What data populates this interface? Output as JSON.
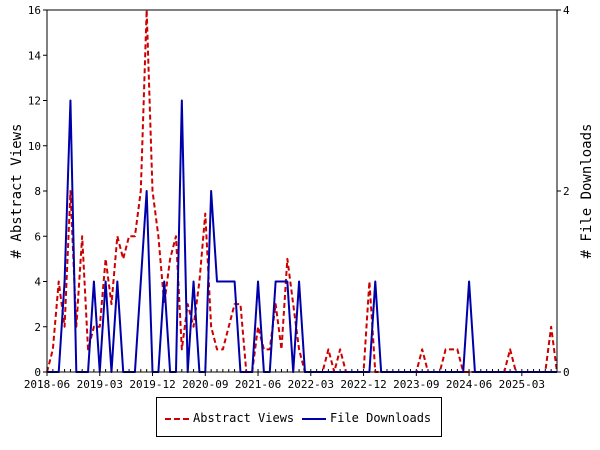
{
  "chart_data": {
    "type": "line",
    "ylabel": "# Abstract Views",
    "y2label": "# File Downloads",
    "ylim": [
      0,
      16
    ],
    "y2lim": [
      0,
      4
    ],
    "yticks": [
      0,
      2,
      4,
      6,
      8,
      10,
      12,
      14,
      16
    ],
    "y2ticks": [
      0,
      2,
      4
    ],
    "x_tick_labels": [
      "2018-06",
      "2019-03",
      "2019-12",
      "2020-09",
      "2021-06",
      "2022-03",
      "2022-12",
      "2023-09",
      "2024-06",
      "2025-03"
    ],
    "legend_position": "bottom",
    "series": [
      {
        "name": "Abstract Views",
        "axis": "left",
        "color": "#cc0000",
        "style": "dashed",
        "values": [
          0,
          1,
          4,
          2,
          8,
          2,
          6,
          1,
          2,
          2,
          5,
          3,
          6,
          5,
          6,
          6,
          8,
          16,
          8,
          6,
          3,
          5,
          6,
          1,
          3,
          2,
          4,
          7,
          2,
          1,
          1,
          2,
          3,
          3,
          0,
          0,
          2,
          1,
          1,
          3,
          1,
          5,
          3,
          1,
          0,
          0,
          0,
          0,
          1,
          0,
          1,
          0,
          0,
          0,
          0,
          4,
          0,
          0,
          0,
          0,
          0,
          0,
          0,
          0,
          1,
          0,
          0,
          0,
          1,
          1,
          1,
          0,
          0,
          0,
          0,
          0,
          0,
          0,
          0,
          1,
          0,
          0,
          0,
          0,
          0,
          0,
          2,
          0
        ]
      },
      {
        "name": "File Downloads",
        "axis": "right",
        "color": "#0000aa",
        "style": "solid",
        "values": [
          0,
          0,
          0,
          1,
          3,
          0,
          0,
          0,
          1,
          0,
          1,
          0,
          1,
          0,
          0,
          0,
          1,
          2,
          0,
          0,
          1,
          0,
          0,
          3,
          0,
          1,
          0,
          0,
          2,
          1,
          1,
          1,
          1,
          0,
          0,
          0,
          1,
          0,
          0,
          1,
          1,
          1,
          0,
          1,
          0,
          0,
          0,
          0,
          0,
          0,
          0,
          0,
          0,
          0,
          0,
          0,
          1,
          0,
          0,
          0,
          0,
          0,
          0,
          0,
          0,
          0,
          0,
          0,
          0,
          0,
          0,
          0,
          1,
          0,
          0,
          0,
          0,
          0,
          0,
          0,
          0,
          0,
          0,
          0,
          0,
          0,
          0,
          0
        ]
      }
    ]
  },
  "colors": {
    "views": "#cc0000",
    "downloads": "#0000aa",
    "axis": "#000000"
  }
}
